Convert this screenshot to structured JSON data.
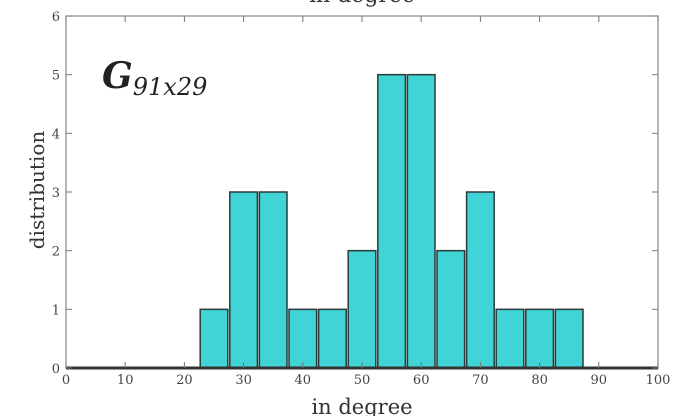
{
  "chart_data": {
    "type": "bar",
    "title": "in degree",
    "xlabel": "in degree",
    "ylabel": "distribution",
    "annotation_main": "G",
    "annotation_sub": "91x29",
    "xlim": [
      0,
      100
    ],
    "ylim": [
      0,
      6
    ],
    "xticks": [
      0,
      10,
      20,
      30,
      40,
      50,
      60,
      70,
      80,
      90,
      100
    ],
    "yticks": [
      0,
      1,
      2,
      3,
      4,
      5,
      6
    ],
    "bin_width": 5,
    "bins": [
      {
        "x": 25,
        "value": 1
      },
      {
        "x": 30,
        "value": 3
      },
      {
        "x": 35,
        "value": 3
      },
      {
        "x": 40,
        "value": 1
      },
      {
        "x": 45,
        "value": 1
      },
      {
        "x": 50,
        "value": 2
      },
      {
        "x": 55,
        "value": 5
      },
      {
        "x": 60,
        "value": 5
      },
      {
        "x": 65,
        "value": 2
      },
      {
        "x": 70,
        "value": 3
      },
      {
        "x": 75,
        "value": 1
      },
      {
        "x": 80,
        "value": 1
      },
      {
        "x": 85,
        "value": 1
      }
    ],
    "bar_color": "#40d4d6",
    "bar_edge_color": "#2a3a3a",
    "grid": false
  }
}
